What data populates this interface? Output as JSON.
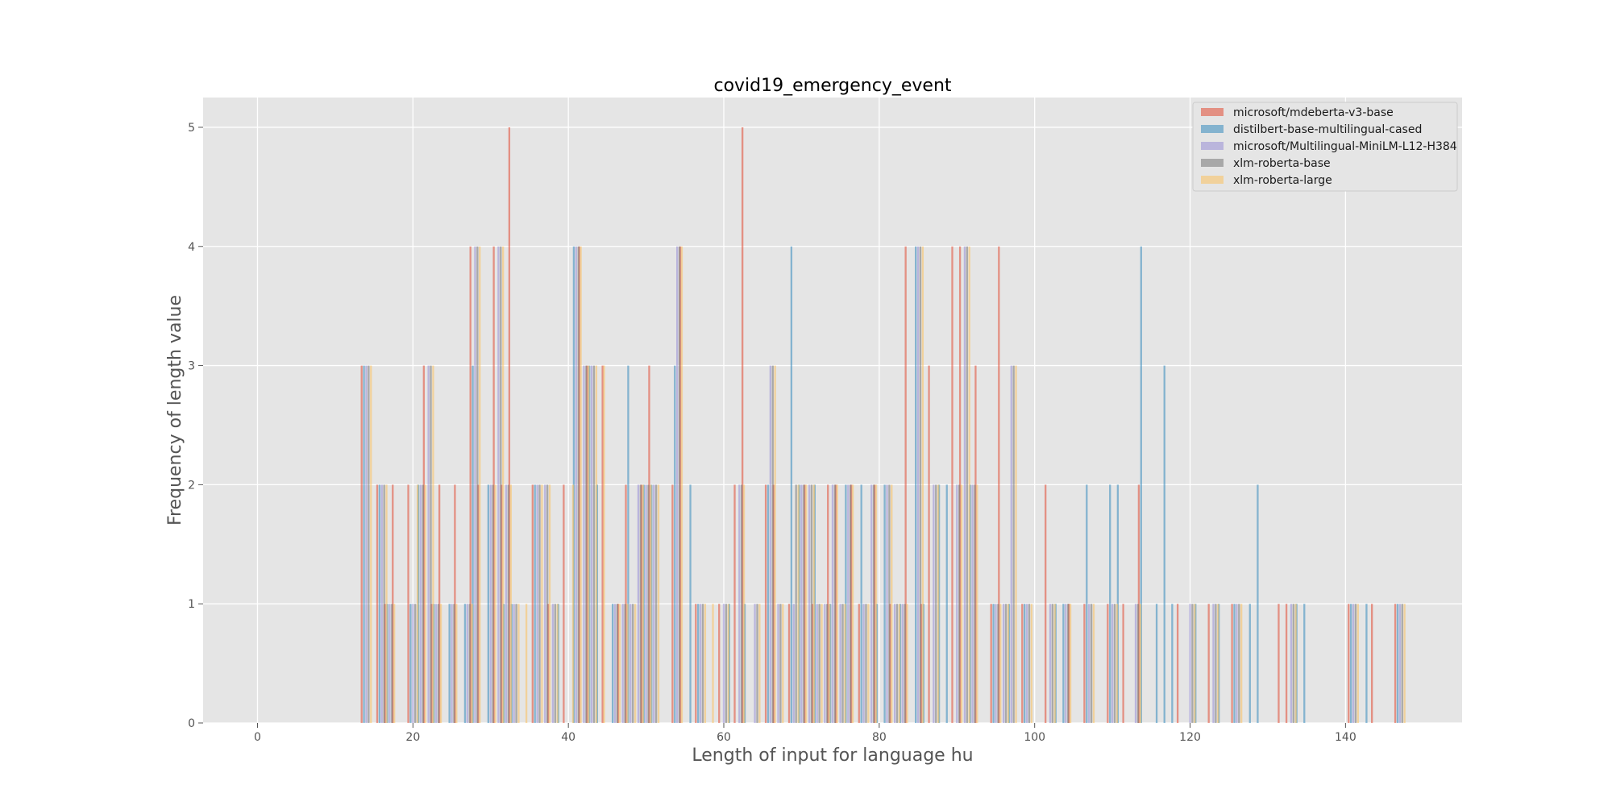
{
  "chart_data": {
    "type": "bar",
    "title": "covid19_emergency_event",
    "xlabel": "Length of input for language hu",
    "ylabel": "Frequency of length value",
    "xlim": [
      -7,
      155
    ],
    "ylim": [
      0,
      5.25
    ],
    "x_ticks": [
      0,
      20,
      40,
      60,
      80,
      100,
      120,
      140
    ],
    "y_ticks": [
      0,
      1,
      2,
      3,
      4,
      5
    ],
    "grid": true,
    "legend_position": "top-right",
    "bar_width": 0.3,
    "series": [
      {
        "name": "microsoft/mdeberta-v3-base",
        "color": "#e24a33",
        "points": [
          [
            14,
            3
          ],
          [
            16,
            2
          ],
          [
            17,
            1
          ],
          [
            18,
            2
          ],
          [
            20,
            2
          ],
          [
            22,
            3
          ],
          [
            23,
            1
          ],
          [
            24,
            2
          ],
          [
            26,
            2
          ],
          [
            28,
            4
          ],
          [
            29,
            2
          ],
          [
            31,
            4
          ],
          [
            32,
            2
          ],
          [
            33,
            5
          ],
          [
            36,
            2
          ],
          [
            38,
            1
          ],
          [
            40,
            2
          ],
          [
            42,
            4
          ],
          [
            43,
            3
          ],
          [
            45,
            3
          ],
          [
            47,
            1
          ],
          [
            48,
            2
          ],
          [
            50,
            2
          ],
          [
            51,
            3
          ],
          [
            54,
            2
          ],
          [
            55,
            4
          ],
          [
            57,
            1
          ],
          [
            60,
            1
          ],
          [
            62,
            2
          ],
          [
            63,
            5
          ],
          [
            66,
            2
          ],
          [
            67,
            2
          ],
          [
            69,
            1
          ],
          [
            71,
            2
          ],
          [
            72,
            1
          ],
          [
            74,
            2
          ],
          [
            75,
            2
          ],
          [
            77,
            2
          ],
          [
            78,
            1
          ],
          [
            80,
            2
          ],
          [
            82,
            1
          ],
          [
            84,
            4
          ],
          [
            86,
            1
          ],
          [
            87,
            3
          ],
          [
            90,
            4
          ],
          [
            91,
            4
          ],
          [
            93,
            3
          ],
          [
            95,
            1
          ],
          [
            96,
            4
          ],
          [
            99,
            1
          ],
          [
            102,
            2
          ],
          [
            105,
            1
          ],
          [
            107,
            1
          ],
          [
            110,
            1
          ],
          [
            112,
            1
          ],
          [
            114,
            2
          ],
          [
            119,
            1
          ],
          [
            123,
            1
          ],
          [
            126,
            1
          ],
          [
            132,
            1
          ],
          [
            133,
            1
          ],
          [
            141,
            1
          ],
          [
            144,
            1
          ],
          [
            147,
            1
          ]
        ]
      },
      {
        "name": "distilbert-base-multilingual-cased",
        "color": "#348abd",
        "points": [
          [
            14,
            3
          ],
          [
            16,
            2
          ],
          [
            17,
            1
          ],
          [
            20,
            1
          ],
          [
            21,
            2
          ],
          [
            23,
            1
          ],
          [
            25,
            1
          ],
          [
            27,
            1
          ],
          [
            28,
            3
          ],
          [
            30,
            2
          ],
          [
            32,
            1
          ],
          [
            33,
            1
          ],
          [
            36,
            2
          ],
          [
            39,
            1
          ],
          [
            41,
            4
          ],
          [
            43,
            3
          ],
          [
            44,
            2
          ],
          [
            46,
            1
          ],
          [
            48,
            3
          ],
          [
            50,
            2
          ],
          [
            51,
            2
          ],
          [
            54,
            3
          ],
          [
            56,
            2
          ],
          [
            57,
            1
          ],
          [
            61,
            1
          ],
          [
            63,
            1
          ],
          [
            66,
            2
          ],
          [
            69,
            4
          ],
          [
            70,
            2
          ],
          [
            72,
            2
          ],
          [
            74,
            1
          ],
          [
            76,
            2
          ],
          [
            78,
            2
          ],
          [
            80,
            1
          ],
          [
            81,
            2
          ],
          [
            83,
            1
          ],
          [
            85,
            4
          ],
          [
            86,
            1
          ],
          [
            88,
            2
          ],
          [
            89,
            2
          ],
          [
            92,
            2
          ],
          [
            95,
            1
          ],
          [
            97,
            1
          ],
          [
            99,
            1
          ],
          [
            103,
            1
          ],
          [
            104,
            1
          ],
          [
            107,
            2
          ],
          [
            110,
            2
          ],
          [
            111,
            2
          ],
          [
            114,
            4
          ],
          [
            116,
            1
          ],
          [
            117,
            3
          ],
          [
            118,
            1
          ],
          [
            121,
            1
          ],
          [
            124,
            1
          ],
          [
            126,
            1
          ],
          [
            128,
            1
          ],
          [
            129,
            2
          ],
          [
            134,
            1
          ],
          [
            135,
            1
          ],
          [
            141,
            1
          ],
          [
            143,
            1
          ],
          [
            147,
            1
          ]
        ]
      },
      {
        "name": "microsoft/Multilingual-MiniLM-L12-H384",
        "color": "#988ed5",
        "points": [
          [
            14,
            3
          ],
          [
            16,
            2
          ],
          [
            17,
            1
          ],
          [
            20,
            1
          ],
          [
            21,
            2
          ],
          [
            22,
            3
          ],
          [
            23,
            1
          ],
          [
            25,
            1
          ],
          [
            27,
            1
          ],
          [
            28,
            4
          ],
          [
            30,
            2
          ],
          [
            31,
            4
          ],
          [
            32,
            2
          ],
          [
            33,
            1
          ],
          [
            36,
            2
          ],
          [
            37,
            2
          ],
          [
            38,
            1
          ],
          [
            41,
            4
          ],
          [
            42,
            3
          ],
          [
            43,
            3
          ],
          [
            46,
            1
          ],
          [
            47,
            1
          ],
          [
            48,
            1
          ],
          [
            49,
            2
          ],
          [
            50,
            2
          ],
          [
            51,
            2
          ],
          [
            54,
            4
          ],
          [
            57,
            1
          ],
          [
            60,
            1
          ],
          [
            62,
            2
          ],
          [
            64,
            1
          ],
          [
            66,
            3
          ],
          [
            67,
            1
          ],
          [
            69,
            1
          ],
          [
            70,
            2
          ],
          [
            71,
            2
          ],
          [
            72,
            1
          ],
          [
            73,
            1
          ],
          [
            74,
            2
          ],
          [
            75,
            1
          ],
          [
            76,
            2
          ],
          [
            78,
            1
          ],
          [
            79,
            2
          ],
          [
            81,
            2
          ],
          [
            82,
            1
          ],
          [
            83,
            1
          ],
          [
            85,
            4
          ],
          [
            87,
            2
          ],
          [
            90,
            2
          ],
          [
            91,
            4
          ],
          [
            92,
            2
          ],
          [
            95,
            1
          ],
          [
            96,
            1
          ],
          [
            97,
            3
          ],
          [
            99,
            1
          ],
          [
            102,
            1
          ],
          [
            104,
            1
          ],
          [
            107,
            1
          ],
          [
            110,
            1
          ],
          [
            113,
            1
          ],
          [
            120,
            1
          ],
          [
            123,
            1
          ],
          [
            126,
            1
          ],
          [
            133,
            1
          ],
          [
            141,
            1
          ],
          [
            147,
            1
          ]
        ]
      },
      {
        "name": "xlm-roberta-base",
        "color": "#777777",
        "points": [
          [
            14,
            3
          ],
          [
            16,
            2
          ],
          [
            17,
            1
          ],
          [
            20,
            1
          ],
          [
            21,
            2
          ],
          [
            22,
            3
          ],
          [
            23,
            1
          ],
          [
            25,
            1
          ],
          [
            27,
            1
          ],
          [
            28,
            4
          ],
          [
            30,
            2
          ],
          [
            31,
            4
          ],
          [
            32,
            2
          ],
          [
            33,
            1
          ],
          [
            36,
            2
          ],
          [
            37,
            2
          ],
          [
            38,
            1
          ],
          [
            41,
            4
          ],
          [
            42,
            3
          ],
          [
            43,
            3
          ],
          [
            46,
            1
          ],
          [
            47,
            1
          ],
          [
            48,
            1
          ],
          [
            49,
            2
          ],
          [
            50,
            2
          ],
          [
            51,
            2
          ],
          [
            54,
            4
          ],
          [
            57,
            1
          ],
          [
            60,
            1
          ],
          [
            62,
            2
          ],
          [
            64,
            1
          ],
          [
            66,
            3
          ],
          [
            67,
            1
          ],
          [
            69,
            2
          ],
          [
            70,
            2
          ],
          [
            71,
            2
          ],
          [
            72,
            1
          ],
          [
            73,
            1
          ],
          [
            74,
            2
          ],
          [
            75,
            1
          ],
          [
            76,
            2
          ],
          [
            78,
            1
          ],
          [
            79,
            2
          ],
          [
            81,
            2
          ],
          [
            82,
            1
          ],
          [
            83,
            1
          ],
          [
            85,
            4
          ],
          [
            87,
            2
          ],
          [
            90,
            2
          ],
          [
            91,
            4
          ],
          [
            92,
            2
          ],
          [
            95,
            1
          ],
          [
            96,
            1
          ],
          [
            97,
            3
          ],
          [
            99,
            1
          ],
          [
            102,
            1
          ],
          [
            104,
            1
          ],
          [
            107,
            1
          ],
          [
            110,
            1
          ],
          [
            113,
            1
          ],
          [
            120,
            1
          ],
          [
            123,
            1
          ],
          [
            126,
            1
          ],
          [
            133,
            1
          ],
          [
            141,
            1
          ],
          [
            147,
            1
          ]
        ]
      },
      {
        "name": "xlm-roberta-large",
        "color": "#fbc15e",
        "points": [
          [
            14,
            3
          ],
          [
            16,
            2
          ],
          [
            17,
            1
          ],
          [
            20,
            2
          ],
          [
            21,
            2
          ],
          [
            22,
            3
          ],
          [
            23,
            1
          ],
          [
            25,
            1
          ],
          [
            27,
            1
          ],
          [
            28,
            4
          ],
          [
            30,
            2
          ],
          [
            31,
            4
          ],
          [
            32,
            2
          ],
          [
            33,
            1
          ],
          [
            34,
            1
          ],
          [
            36,
            2
          ],
          [
            37,
            2
          ],
          [
            38,
            1
          ],
          [
            40,
            2
          ],
          [
            41,
            4
          ],
          [
            42,
            3
          ],
          [
            43,
            3
          ],
          [
            44,
            3
          ],
          [
            46,
            1
          ],
          [
            47,
            1
          ],
          [
            48,
            1
          ],
          [
            49,
            2
          ],
          [
            50,
            2
          ],
          [
            51,
            2
          ],
          [
            54,
            4
          ],
          [
            57,
            1
          ],
          [
            58,
            1
          ],
          [
            60,
            1
          ],
          [
            62,
            2
          ],
          [
            64,
            1
          ],
          [
            66,
            3
          ],
          [
            67,
            1
          ],
          [
            69,
            2
          ],
          [
            70,
            2
          ],
          [
            71,
            2
          ],
          [
            72,
            1
          ],
          [
            73,
            1
          ],
          [
            74,
            2
          ],
          [
            75,
            1
          ],
          [
            76,
            2
          ],
          [
            78,
            1
          ],
          [
            79,
            2
          ],
          [
            81,
            2
          ],
          [
            82,
            1
          ],
          [
            83,
            1
          ],
          [
            85,
            4
          ],
          [
            87,
            2
          ],
          [
            90,
            2
          ],
          [
            91,
            4
          ],
          [
            92,
            2
          ],
          [
            95,
            1
          ],
          [
            96,
            1
          ],
          [
            97,
            3
          ],
          [
            99,
            1
          ],
          [
            102,
            1
          ],
          [
            104,
            1
          ],
          [
            107,
            1
          ],
          [
            110,
            1
          ],
          [
            113,
            1
          ],
          [
            120,
            1
          ],
          [
            123,
            1
          ],
          [
            126,
            1
          ],
          [
            133,
            1
          ],
          [
            141,
            1
          ],
          [
            147,
            1
          ]
        ]
      }
    ]
  }
}
